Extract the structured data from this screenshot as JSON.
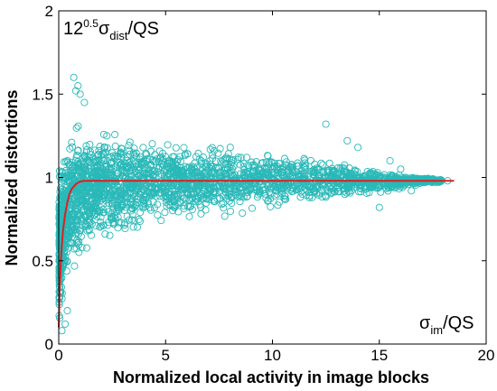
{
  "chart_data": {
    "type": "scatter",
    "title": "",
    "xlabel": "Normalized local activity in image blocks",
    "ylabel": "Normalized distortions",
    "xlim": [
      0,
      20
    ],
    "ylim": [
      0,
      2
    ],
    "x_ticks": [
      0,
      5,
      10,
      15,
      20
    ],
    "y_ticks": [
      0,
      0.5,
      1,
      1.5,
      2
    ],
    "x_tick_labels": [
      "0",
      "5",
      "10",
      "15",
      "20"
    ],
    "y_tick_labels": [
      "0",
      "0.5",
      "1",
      "1.5",
      "2"
    ],
    "y_annotation": {
      "base": "12",
      "exponent": "0.5",
      "symbol": "σ",
      "subscript": "dist",
      "suffix": "/QS"
    },
    "x_annotation": {
      "symbol": "σ",
      "subscript": "im",
      "suffix": "/QS"
    },
    "grid": false,
    "legend": "none",
    "colors": {
      "scatter": "#2ab8b8",
      "curve": "#dd1f1f"
    },
    "scatter_envelope": {
      "x": [
        0.05,
        0.2,
        0.5,
        1,
        2,
        3,
        4,
        5,
        6,
        7,
        8,
        9,
        10,
        11,
        12,
        13,
        14,
        15,
        16,
        17,
        18
      ],
      "upper": [
        1.05,
        1.2,
        1.3,
        1.35,
        1.3,
        1.28,
        1.25,
        1.25,
        1.23,
        1.2,
        1.2,
        1.18,
        1.17,
        1.15,
        1.12,
        1.1,
        1.08,
        1.05,
        1.02,
        1.0,
        0.99
      ],
      "lower": [
        0.1,
        0.25,
        0.38,
        0.5,
        0.6,
        0.65,
        0.68,
        0.7,
        0.72,
        0.74,
        0.76,
        0.78,
        0.8,
        0.82,
        0.84,
        0.86,
        0.88,
        0.9,
        0.93,
        0.96,
        0.97
      ]
    },
    "outliers": [
      {
        "x": 0.7,
        "y": 1.6
      },
      {
        "x": 0.9,
        "y": 1.55
      },
      {
        "x": 1.0,
        "y": 1.5
      },
      {
        "x": 1.2,
        "y": 1.45
      },
      {
        "x": 0.8,
        "y": 1.52
      },
      {
        "x": 0.3,
        "y": 0.12
      },
      {
        "x": 0.15,
        "y": 0.08
      },
      {
        "x": 0.4,
        "y": 0.2
      },
      {
        "x": 12.5,
        "y": 1.32
      },
      {
        "x": 13.5,
        "y": 1.22
      },
      {
        "x": 14.0,
        "y": 1.18
      },
      {
        "x": 15.5,
        "y": 1.1
      },
      {
        "x": 16.0,
        "y": 1.05
      },
      {
        "x": 18.2,
        "y": 0.98
      },
      {
        "x": 15.0,
        "y": 0.82
      },
      {
        "x": 16.5,
        "y": 0.92
      }
    ],
    "series": [
      {
        "x": [
          0,
          0.05,
          0.1,
          0.15,
          0.2,
          0.3,
          0.4,
          0.5,
          0.6,
          0.8,
          1.0,
          1.2,
          1.5,
          2,
          3,
          5,
          10,
          15,
          18.5
        ],
        "values": [
          0.1,
          0.35,
          0.5,
          0.6,
          0.68,
          0.78,
          0.85,
          0.9,
          0.93,
          0.96,
          0.975,
          0.98,
          0.98,
          0.98,
          0.98,
          0.98,
          0.98,
          0.98,
          0.98
        ]
      }
    ]
  }
}
